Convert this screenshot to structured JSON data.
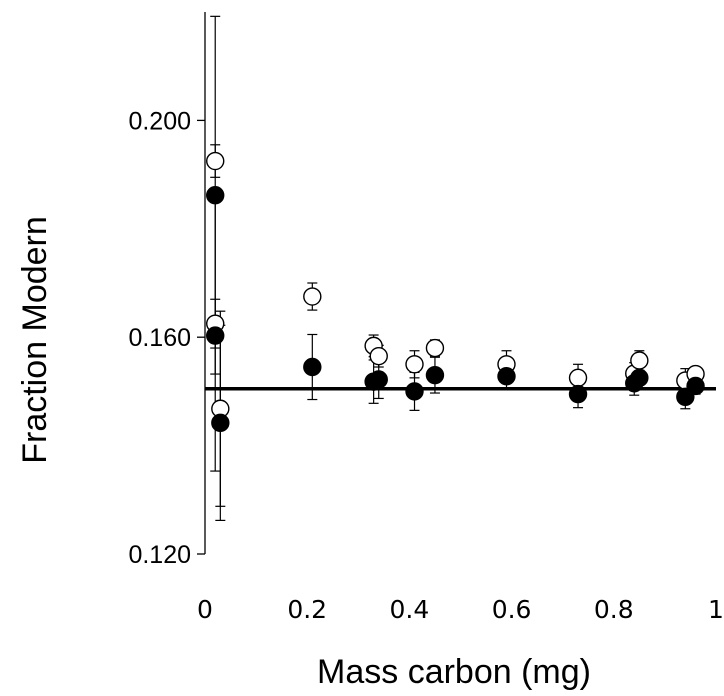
{
  "chart_data": {
    "type": "scatter",
    "xlabel": "Mass carbon (mg)",
    "ylabel": "Fraction Modern",
    "xlim": [
      0,
      1
    ],
    "ylim": [
      0.12,
      0.22
    ],
    "x_ticks": [
      "0",
      "0.2",
      "0.4",
      "0.6",
      "0.8",
      "1"
    ],
    "y_ticks": [
      "0.120",
      "0.160",
      "0.200"
    ],
    "x_tick_values": [
      0,
      0.2,
      0.4,
      0.6,
      0.8,
      1
    ],
    "y_tick_values": [
      0.12,
      0.16,
      0.2
    ],
    "grid": false,
    "reference_line": {
      "y": 0.1505
    },
    "series": [
      {
        "marker": "open-circle",
        "points": [
          {
            "x": 0.02,
            "y": 0.1925,
            "err": 0.003
          },
          {
            "x": 0.02,
            "y": 0.1625,
            "err": 0.0045
          },
          {
            "x": 0.03,
            "y": 0.1468,
            "err": 0.018
          },
          {
            "x": 0.21,
            "y": 0.1675,
            "err": 0.0025
          },
          {
            "x": 0.33,
            "y": 0.1584,
            "err": 0.002
          },
          {
            "x": 0.34,
            "y": 0.1565,
            "err": 0.002
          },
          {
            "x": 0.41,
            "y": 0.155,
            "err": 0.0025
          },
          {
            "x": 0.45,
            "y": 0.158,
            "err": 0.0015
          },
          {
            "x": 0.59,
            "y": 0.155,
            "err": 0.0025
          },
          {
            "x": 0.73,
            "y": 0.1525,
            "err": 0.0025
          },
          {
            "x": 0.84,
            "y": 0.1533,
            "err": 0.002
          },
          {
            "x": 0.85,
            "y": 0.1557,
            "err": 0.0018
          },
          {
            "x": 0.94,
            "y": 0.152,
            "err": 0.0022
          },
          {
            "x": 0.96,
            "y": 0.1532,
            "err": 0.0012
          }
        ]
      },
      {
        "marker": "filled-circle",
        "points": [
          {
            "x": 0.02,
            "y": 0.1862,
            "err": 0.033
          },
          {
            "x": 0.02,
            "y": 0.1603,
            "err": 0.025
          },
          {
            "x": 0.03,
            "y": 0.1442,
            "err": 0.018
          },
          {
            "x": 0.21,
            "y": 0.1545,
            "err": 0.006
          },
          {
            "x": 0.33,
            "y": 0.1518,
            "err": 0.004
          },
          {
            "x": 0.34,
            "y": 0.1522,
            "err": 0.0035
          },
          {
            "x": 0.41,
            "y": 0.15,
            "err": 0.0035
          },
          {
            "x": 0.45,
            "y": 0.153,
            "err": 0.0033
          },
          {
            "x": 0.59,
            "y": 0.1528,
            "err": 0.0025
          },
          {
            "x": 0.73,
            "y": 0.1495,
            "err": 0.0025
          },
          {
            "x": 0.84,
            "y": 0.1515,
            "err": 0.0022
          },
          {
            "x": 0.85,
            "y": 0.1525,
            "err": 0.002
          },
          {
            "x": 0.94,
            "y": 0.149,
            "err": 0.0022
          },
          {
            "x": 0.96,
            "y": 0.151,
            "err": 0.0015
          }
        ]
      }
    ]
  }
}
